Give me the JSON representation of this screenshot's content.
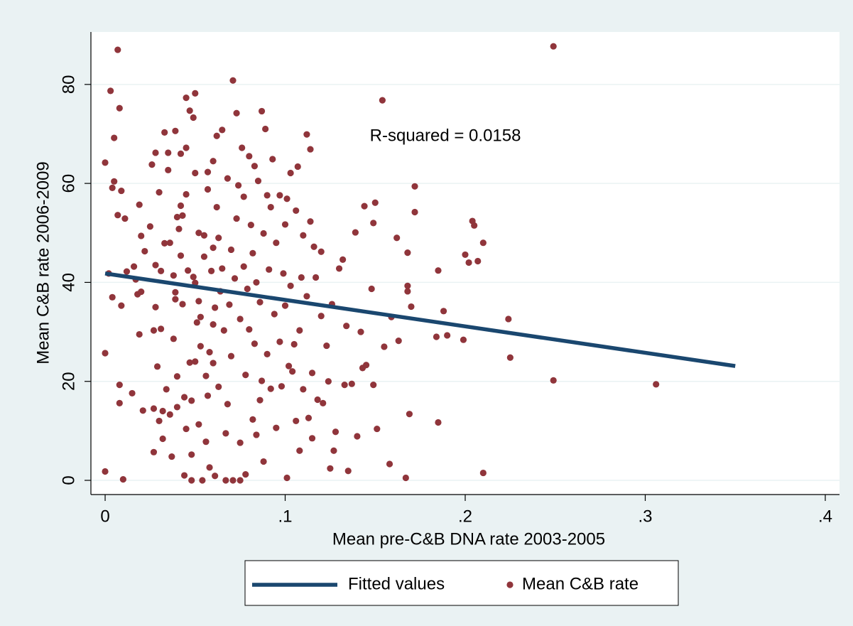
{
  "chart_data": {
    "type": "scatter",
    "x_label": "Mean pre-C&B DNA rate 2003-2005",
    "y_label": "Mean C&B rate 2006-2009",
    "annotation": {
      "text": "R-squared = 0.0158",
      "x": 0.147,
      "y": 69.5
    },
    "xlim": [
      -0.0079,
      0.4079
    ],
    "ylim": [
      -2.87,
      90.6
    ],
    "xticks": [
      0,
      {
        "value": 0.1,
        "label": ".1"
      },
      {
        "value": 0.2,
        "label": ".2"
      },
      {
        "value": 0.3,
        "label": ".3"
      },
      {
        "value": 0.4,
        "label": ".4"
      }
    ],
    "yticks": [
      0,
      20,
      40,
      60,
      80
    ],
    "grid": true,
    "legend": "bottom",
    "series": [
      {
        "name": "Fitted values",
        "color": "#1a476f",
        "style": "line",
        "x": [
          0,
          0.35
        ],
        "values": [
          41.8,
          23.1
        ]
      },
      {
        "name": "Mean C&B rate",
        "color": "#90353b",
        "style": "marker",
        "x": [
          0,
          0,
          0,
          0.002,
          0.003,
          0.004,
          0.004,
          0.005,
          0.005,
          0.007,
          0.007,
          0.008,
          0.008,
          0.008,
          0.009,
          0.009,
          0.01,
          0.011,
          0.012,
          0.015,
          0.016,
          0.017,
          0.018,
          0.019,
          0.019,
          0.02,
          0.02,
          0.021,
          0.022,
          0.025,
          0.026,
          0.027,
          0.027,
          0.027,
          0.028,
          0.028,
          0.028,
          0.029,
          0.03,
          0.03,
          0.031,
          0.031,
          0.032,
          0.032,
          0.033,
          0.033,
          0.034,
          0.035,
          0.035,
          0.036,
          0.036,
          0.037,
          0.038,
          0.038,
          0.039,
          0.039,
          0.039,
          0.04,
          0.04,
          0.04,
          0.041,
          0.042,
          0.042,
          0.042,
          0.043,
          0.043,
          0.044,
          0.044,
          0.045,
          0.045,
          0.045,
          0.045,
          0.046,
          0.047,
          0.047,
          0.048,
          0.048,
          0.048,
          0.049,
          0.049,
          0.05,
          0.05,
          0.05,
          0.05,
          0.051,
          0.052,
          0.052,
          0.052,
          0.053,
          0.053,
          0.054,
          0.055,
          0.055,
          0.056,
          0.056,
          0.057,
          0.057,
          0.057,
          0.058,
          0.058,
          0.059,
          0.06,
          0.06,
          0.06,
          0.06,
          0.061,
          0.061,
          0.062,
          0.062,
          0.063,
          0.063,
          0.064,
          0.065,
          0.065,
          0.066,
          0.067,
          0.067,
          0.068,
          0.068,
          0.069,
          0.07,
          0.07,
          0.071,
          0.071,
          0.072,
          0.073,
          0.073,
          0.074,
          0.075,
          0.075,
          0.075,
          0.076,
          0.077,
          0.077,
          0.078,
          0.078,
          0.079,
          0.08,
          0.08,
          0.081,
          0.082,
          0.082,
          0.083,
          0.083,
          0.084,
          0.084,
          0.085,
          0.086,
          0.086,
          0.087,
          0.087,
          0.088,
          0.088,
          0.089,
          0.09,
          0.09,
          0.091,
          0.092,
          0.092,
          0.093,
          0.094,
          0.095,
          0.095,
          0.097,
          0.097,
          0.098,
          0.099,
          0.1,
          0.1,
          0.101,
          0.101,
          0.102,
          0.103,
          0.103,
          0.104,
          0.105,
          0.106,
          0.106,
          0.107,
          0.108,
          0.108,
          0.109,
          0.11,
          0.11,
          0.112,
          0.112,
          0.113,
          0.114,
          0.114,
          0.115,
          0.115,
          0.116,
          0.117,
          0.118,
          0.12,
          0.12,
          0.121,
          0.123,
          0.124,
          0.125,
          0.126,
          0.127,
          0.128,
          0.13,
          0.132,
          0.133,
          0.134,
          0.135,
          0.137,
          0.139,
          0.14,
          0.142,
          0.143,
          0.144,
          0.145,
          0.148,
          0.149,
          0.149,
          0.15,
          0.151,
          0.154,
          0.155,
          0.158,
          0.159,
          0.162,
          0.163,
          0.167,
          0.168,
          0.168,
          0.168,
          0.169,
          0.17,
          0.172,
          0.172,
          0.184,
          0.185,
          0.185,
          0.188,
          0.19,
          0.199,
          0.2,
          0.202,
          0.204,
          0.205,
          0.207,
          0.21,
          0.21,
          0.224,
          0.225,
          0.249,
          0.249,
          0.306
        ],
        "values": [
          64.2,
          25.7,
          1.8,
          41.8,
          78.7,
          59.1,
          37,
          60.4,
          69.2,
          87,
          53.6,
          75.2,
          15.6,
          19.3,
          58.5,
          35.3,
          0.2,
          52.9,
          42.2,
          17.6,
          43.2,
          40.6,
          37.6,
          55.7,
          29.5,
          49.4,
          38.1,
          14.1,
          46.3,
          51.3,
          63.8,
          14.5,
          5.7,
          30.3,
          43.5,
          66.2,
          35,
          23,
          58.2,
          12,
          42.3,
          30.6,
          8.4,
          14,
          70.3,
          47.9,
          18.4,
          62.7,
          66.2,
          13.3,
          48,
          4.8,
          41.4,
          28.6,
          38,
          70.6,
          36.6,
          53.2,
          21,
          14.8,
          50.8,
          55.5,
          45.4,
          66,
          53.5,
          35.6,
          1,
          16.8,
          77.3,
          67.2,
          57.8,
          10.4,
          42.4,
          23.8,
          74.7,
          5.2,
          0,
          16.1,
          73.3,
          41.1,
          78.2,
          62.1,
          39.9,
          24,
          31.9,
          50,
          36.2,
          11.3,
          33,
          27.1,
          0,
          45.2,
          49.5,
          21.1,
          7.8,
          58.8,
          62.3,
          17.1,
          2.6,
          25.9,
          42.3,
          64.5,
          47,
          31.5,
          23.7,
          0.9,
          34.9,
          55.2,
          69.6,
          18.9,
          49,
          38.2,
          70.8,
          42.8,
          30.3,
          0,
          9.5,
          61,
          15.4,
          35.5,
          46.6,
          25.1,
          80.8,
          0,
          40.8,
          52.9,
          74.2,
          59.6,
          0,
          32.6,
          7.6,
          67.2,
          43.2,
          57.3,
          1.2,
          21.3,
          38.7,
          65.5,
          30.5,
          51.6,
          45.9,
          12.3,
          63.5,
          27.6,
          9.2,
          40,
          60.5,
          36,
          16.2,
          74.6,
          20.1,
          49.9,
          3.8,
          71,
          57.6,
          25.5,
          42.6,
          55.2,
          18.5,
          64.9,
          33.6,
          10.6,
          48,
          57.6,
          28,
          19,
          41.8,
          51.7,
          35.3,
          56.9,
          0.5,
          23.1,
          62.1,
          39.3,
          22,
          27.5,
          54.5,
          12,
          63.4,
          30.3,
          6,
          41,
          49.5,
          18.4,
          69.9,
          37.2,
          12.6,
          66.9,
          52.3,
          21.7,
          8.5,
          47.2,
          41,
          16.3,
          33.2,
          46.2,
          15.6,
          27.2,
          20,
          2.4,
          35.6,
          6,
          9.8,
          42.8,
          44.6,
          19.3,
          31.2,
          1.9,
          19.5,
          50.1,
          8.9,
          30,
          22.7,
          55.4,
          23.3,
          38.7,
          52,
          19.3,
          56.1,
          10.4,
          76.8,
          27,
          3.3,
          33,
          49,
          28.2,
          0.5,
          46,
          38.2,
          39.3,
          13.4,
          35.1,
          59.4,
          54.2,
          29,
          11.7,
          42.4,
          34.2,
          29.3,
          28.4,
          45.6,
          44,
          52.4,
          51.5,
          44.3,
          48,
          1.5,
          32.6,
          24.8,
          20.2,
          87.7,
          19.4
        ]
      }
    ]
  }
}
